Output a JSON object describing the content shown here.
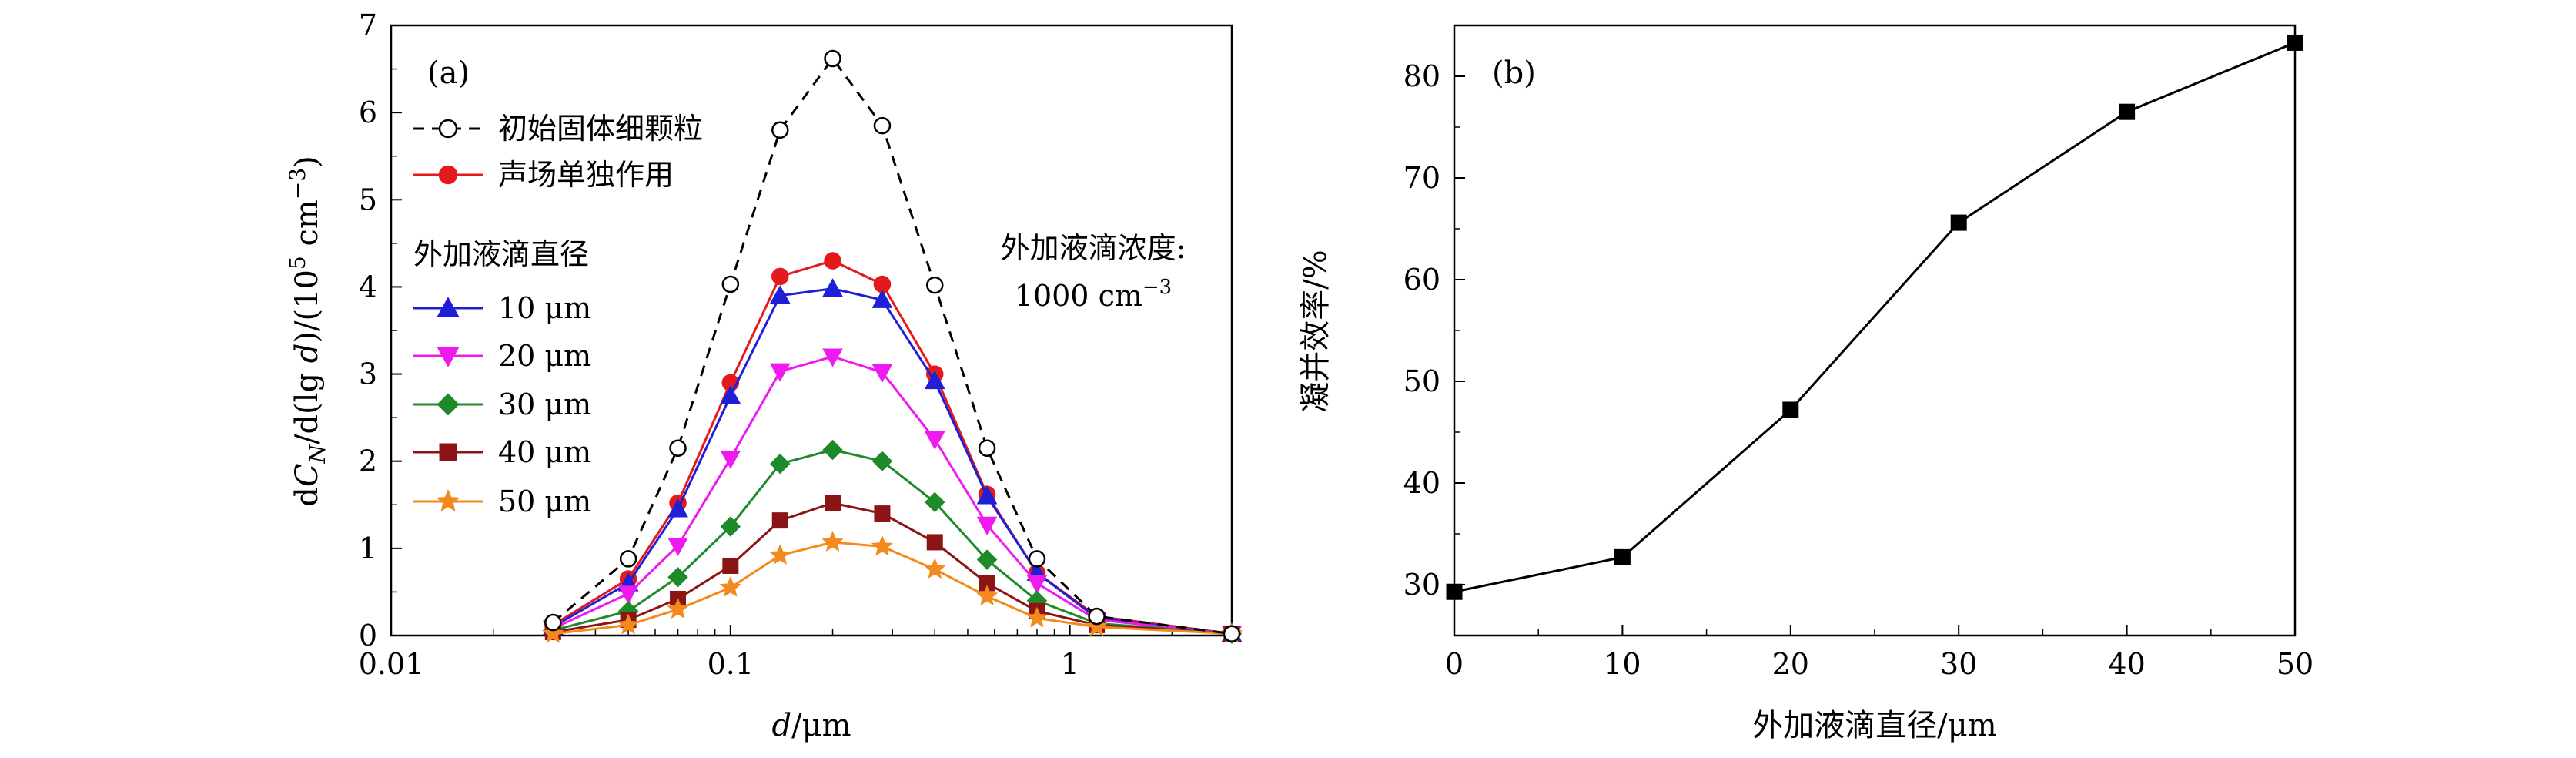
{
  "chart_data": [
    {
      "type": "line",
      "panel_label": "(a)",
      "xlabel": "d/μm",
      "ylabel": "dC_N/d(lg d)/(10^5 cm^-3)",
      "xscale": "log",
      "xlim": [
        0.01,
        3
      ],
      "ylim": [
        0,
        7
      ],
      "xticks": [
        "0.01",
        "0.1",
        "1"
      ],
      "yticks": [
        "0",
        "1",
        "2",
        "3",
        "4",
        "5",
        "6",
        "7"
      ],
      "x": [
        0.03,
        0.05,
        0.07,
        0.1,
        0.14,
        0.2,
        0.28,
        0.4,
        0.57,
        0.8,
        1.2,
        3.0
      ],
      "series": [
        {
          "name": "初始固体细颗粒",
          "color": "#000000",
          "marker": "open-circle",
          "dash": true,
          "values": [
            0.15,
            0.88,
            2.15,
            4.03,
            5.8,
            6.62,
            5.85,
            4.02,
            2.15,
            0.88,
            0.22,
            0.02
          ]
        },
        {
          "name": "声场单独作用",
          "color": "#e4191c",
          "marker": "circle",
          "dash": false,
          "values": [
            0.12,
            0.65,
            1.52,
            2.9,
            4.12,
            4.3,
            4.03,
            3.0,
            1.62,
            0.72,
            0.22,
            0.02
          ]
        },
        {
          "name": "10 μm",
          "color": "#1f1fd8",
          "marker": "triangle-up",
          "dash": false,
          "values": [
            0.1,
            0.6,
            1.45,
            2.75,
            3.9,
            3.98,
            3.85,
            2.92,
            1.6,
            0.72,
            0.2,
            0.02
          ]
        },
        {
          "name": "20 μm",
          "color": "#ee1aee",
          "marker": "triangle-down",
          "dash": false,
          "values": [
            0.08,
            0.48,
            1.03,
            2.03,
            3.03,
            3.2,
            3.02,
            2.25,
            1.27,
            0.6,
            0.18,
            0.02
          ]
        },
        {
          "name": "30 μm",
          "color": "#1e8a2a",
          "marker": "diamond",
          "dash": false,
          "values": [
            0.06,
            0.28,
            0.67,
            1.25,
            1.97,
            2.13,
            2.0,
            1.53,
            0.87,
            0.4,
            0.14,
            0.02
          ]
        },
        {
          "name": "40 μm",
          "color": "#8b1414",
          "marker": "square",
          "dash": false,
          "values": [
            0.04,
            0.18,
            0.42,
            0.8,
            1.32,
            1.52,
            1.4,
            1.07,
            0.6,
            0.28,
            0.12,
            0.02
          ]
        },
        {
          "name": "50 μm",
          "color": "#f28a1e",
          "marker": "star",
          "dash": false,
          "values": [
            0.02,
            0.12,
            0.3,
            0.55,
            0.92,
            1.07,
            1.02,
            0.76,
            0.45,
            0.2,
            0.1,
            0.02
          ]
        }
      ],
      "legend_group_title": "外加液滴直径",
      "annotation_line1": "外加液滴浓度:",
      "annotation_line2": "1000 cm^-3"
    },
    {
      "type": "line",
      "panel_label": "(b)",
      "xlabel": "外加液滴直径/μm",
      "ylabel": "凝并效率/%",
      "xlim": [
        0,
        50
      ],
      "ylim": [
        25,
        85
      ],
      "xticks": [
        "0",
        "10",
        "20",
        "30",
        "40",
        "50"
      ],
      "yticks": [
        "30",
        "40",
        "50",
        "60",
        "70",
        "80"
      ],
      "x": [
        0,
        10,
        20,
        30,
        40,
        50
      ],
      "series": [
        {
          "color": "#000000",
          "marker": "square",
          "values": [
            29.3,
            32.7,
            47.2,
            65.6,
            76.5,
            83.3
          ]
        }
      ]
    }
  ]
}
